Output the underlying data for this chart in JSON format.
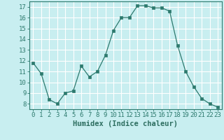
{
  "x": [
    0,
    1,
    2,
    3,
    4,
    5,
    6,
    7,
    8,
    9,
    10,
    11,
    12,
    13,
    14,
    15,
    16,
    17,
    18,
    19,
    20,
    21,
    22,
    23
  ],
  "y": [
    11.8,
    10.8,
    8.4,
    8.0,
    9.0,
    9.2,
    11.5,
    10.5,
    11.0,
    12.5,
    14.8,
    16.0,
    16.0,
    17.1,
    17.1,
    16.9,
    16.9,
    16.6,
    13.4,
    11.0,
    9.6,
    8.5,
    8.0,
    7.7
  ],
  "xlabel": "Humidex (Indice chaleur)",
  "xlim": [
    -0.5,
    23.5
  ],
  "ylim": [
    7.5,
    17.5
  ],
  "yticks": [
    8,
    9,
    10,
    11,
    12,
    13,
    14,
    15,
    16,
    17
  ],
  "xticks": [
    0,
    1,
    2,
    3,
    4,
    5,
    6,
    7,
    8,
    9,
    10,
    11,
    12,
    13,
    14,
    15,
    16,
    17,
    18,
    19,
    20,
    21,
    22,
    23
  ],
  "line_color": "#2d7a6e",
  "marker_color": "#2d7a6e",
  "bg_color": "#c8eef0",
  "grid_color": "#ffffff",
  "axis_color": "#2d7a6e",
  "tick_label_color": "#2d6e60",
  "xlabel_color": "#2d6e60",
  "font_size_tick": 6.5,
  "font_size_xlabel": 7.5
}
